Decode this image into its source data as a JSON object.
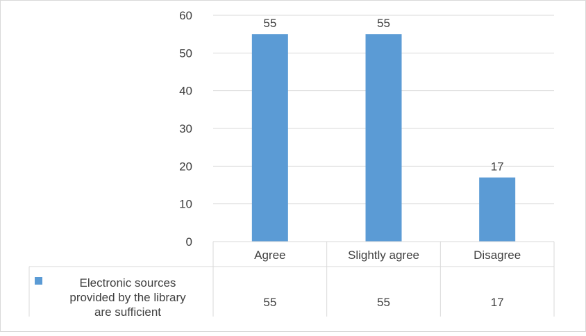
{
  "chart_data": {
    "type": "bar",
    "categories": [
      "Agree",
      "Slightly agree",
      "Disagree"
    ],
    "series": [
      {
        "name": "Electronic sources provided by the library are sufficient",
        "name_lines": [
          "Electronic sources",
          "provided by the library",
          "are sufficient"
        ],
        "values": [
          55,
          55,
          17
        ],
        "color": "#5b9bd5"
      }
    ],
    "y_ticks": [
      0,
      10,
      20,
      30,
      40,
      50,
      60
    ],
    "ylim": [
      0,
      60
    ],
    "grid": true,
    "data_labels": true,
    "legend": "data-table",
    "title": "",
    "xlabel": "",
    "ylabel": ""
  }
}
